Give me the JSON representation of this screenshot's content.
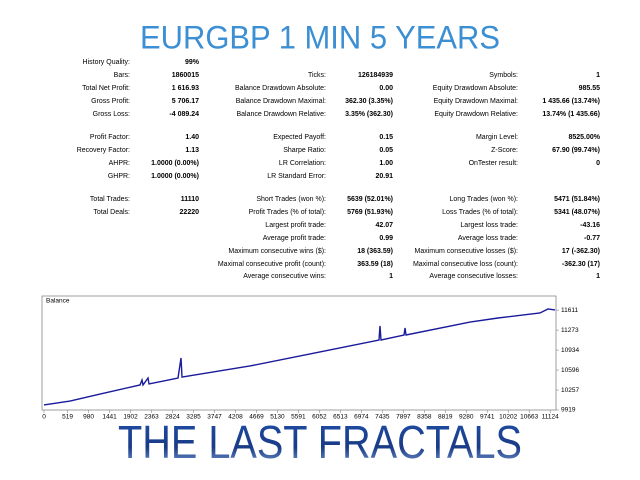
{
  "header": {
    "title": "EURGBP 1 MIN 5 YEARS"
  },
  "stats": {
    "rows": [
      {
        "left": {
          "label": "History Quality:",
          "value": "99%"
        }
      },
      {
        "left": {
          "label": "Bars:",
          "value": "1860015"
        },
        "middle": {
          "label": "Ticks:",
          "value": "126184939"
        },
        "right": {
          "label": "Symbols:",
          "value": "1"
        }
      },
      {
        "left": {
          "label": "Total Net Profit:",
          "value": "1 616.93"
        },
        "middle": {
          "label": "Balance Drawdown Absolute:",
          "value": "0.00"
        },
        "right": {
          "label": "Equity Drawdown Absolute:",
          "value": "985.55"
        }
      },
      {
        "left": {
          "label": "Gross Profit:",
          "value": "5 706.17"
        },
        "middle": {
          "label": "Balance Drawdown Maximal:",
          "value": "362.30 (3.35%)"
        },
        "right": {
          "label": "Equity Drawdown Maximal:",
          "value": "1 435.66 (13.74%)"
        }
      },
      {
        "left": {
          "label": "Gross Loss:",
          "value": "-4 089.24"
        },
        "middle": {
          "label": "Balance Drawdown Relative:",
          "value": "3.35% (362.30)"
        },
        "right": {
          "label": "Equity Drawdown Relative:",
          "value": "13.74% (1 435.66)"
        }
      },
      {
        "left": {
          "label": "Profit Factor:",
          "value": "1.40"
        },
        "middle": {
          "label": "Expected Payoff:",
          "value": "0.15"
        },
        "right": {
          "label": "Margin Level:",
          "value": "8525.00%"
        }
      },
      {
        "left": {
          "label": "Recovery Factor:",
          "value": "1.13"
        },
        "middle": {
          "label": "Sharpe Ratio:",
          "value": "0.05"
        },
        "right": {
          "label": "Z-Score:",
          "value": "67.90 (99.74%)"
        }
      },
      {
        "left": {
          "label": "AHPR:",
          "value": "1.0000 (0.00%)"
        },
        "middle": {
          "label": "LR Correlation:",
          "value": "1.00"
        },
        "right": {
          "label": "OnTester result:",
          "value": "0"
        }
      },
      {
        "left": {
          "label": "GHPR:",
          "value": "1.0000 (0.00%)"
        },
        "middle": {
          "label": "LR Standard Error:",
          "value": "20.91"
        }
      },
      {
        "left": {
          "label": "Total Trades:",
          "value": "11110"
        },
        "middle": {
          "label": "Short Trades (won %):",
          "value": "5639 (52.01%)"
        },
        "right": {
          "label": "Long Trades (won %):",
          "value": "5471 (51.84%)"
        }
      },
      {
        "left": {
          "label": "Total Deals:",
          "value": "22220"
        },
        "middle": {
          "label": "Profit Trades (% of total):",
          "value": "5769 (51.93%)"
        },
        "right": {
          "label": "Loss Trades (% of total):",
          "value": "5341 (48.07%)"
        }
      },
      {
        "middle": {
          "label": "Largest profit trade:",
          "value": "42.07"
        },
        "right": {
          "label": "Largest loss trade:",
          "value": "-43.16"
        }
      },
      {
        "middle": {
          "label": "Average profit trade:",
          "value": "0.99"
        },
        "right": {
          "label": "Average loss trade:",
          "value": "-0.77"
        }
      },
      {
        "middle": {
          "label": "Maximum consecutive wins ($):",
          "value": "18 (363.59)"
        },
        "right": {
          "label": "Maximum consecutive losses ($):",
          "value": "17 (-362.30)"
        }
      },
      {
        "middle": {
          "label": "Maximal consecutive profit (count):",
          "value": "363.59 (18)"
        },
        "right": {
          "label": "Maximal consecutive loss (count):",
          "value": "-362.30 (17)"
        }
      },
      {
        "middle": {
          "label": "Average consecutive wins:",
          "value": "1"
        },
        "right": {
          "label": "Average consecutive losses:",
          "value": "1"
        }
      }
    ]
  },
  "balance_chart": {
    "type": "line",
    "label": "Balance",
    "color": "#1a1a9c",
    "x": [
      0,
      571,
      1231,
      2110,
      2154,
      2176,
      2286,
      2308,
      2945,
      3011,
      3033,
      4527,
      6065,
      7362,
      7384,
      7406,
      7912,
      7934,
      7956,
      9362,
      9977,
      10900,
      11076,
      11230
    ],
    "values": [
      10004,
      10071,
      10190,
      10343,
      10427,
      10343,
      10461,
      10360,
      10461,
      10800,
      10478,
      10665,
      10902,
      11105,
      11343,
      11105,
      11190,
      11309,
      11190,
      11410,
      11478,
      11563,
      11631,
      11614
    ],
    "xlim": [
      0,
      11230
    ],
    "ylim": [
      9919,
      11800
    ],
    "xticks": [
      0,
      519,
      980,
      1441,
      1902,
      2363,
      2824,
      3285,
      3747,
      4208,
      4669,
      5130,
      5591,
      6052,
      6513,
      6974,
      7435,
      7897,
      8358,
      8819,
      9280,
      9741,
      10202,
      10663,
      11124
    ],
    "yticks": [
      9919,
      10257,
      10596,
      10934,
      11273,
      11611
    ]
  },
  "footer": {
    "title": "THE LAST FRACTALS"
  }
}
